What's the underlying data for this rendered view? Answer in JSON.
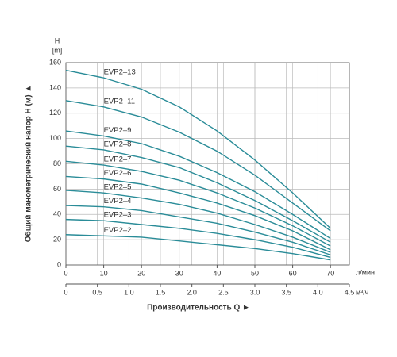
{
  "chart_data": {
    "type": "line",
    "y_label": "H",
    "y_unit": "[m]",
    "y_title": "Общий манометрический напор H (м) ▲",
    "x_title": "Производительность Q ►",
    "x_unit": "л/мин",
    "x2_unit": "м³/ч",
    "x": [
      0,
      10,
      20,
      30,
      40,
      50,
      60,
      70
    ],
    "xlim": [
      0,
      75
    ],
    "xticks": [
      0,
      10,
      20,
      30,
      40,
      50,
      60,
      70
    ],
    "x2lim": [
      0,
      4.5
    ],
    "x2ticks": [
      0,
      0.5,
      {
        "value": 1,
        "label": "1.0"
      },
      1.5,
      {
        "value": 2,
        "label": "2.0"
      },
      2.5,
      {
        "value": 3,
        "label": "3.0"
      },
      3.5,
      {
        "value": 4,
        "label": "4.0"
      },
      4.5
    ],
    "ylim": [
      0,
      160
    ],
    "yticks": [
      0,
      20,
      40,
      60,
      80,
      100,
      120,
      140,
      160
    ],
    "grid": true,
    "series": [
      {
        "name": "EVP2–13",
        "color": "#2a8c98",
        "values": [
          154,
          148,
          139,
          125,
          106,
          83,
          57,
          29
        ]
      },
      {
        "name": "EVP2–11",
        "color": "#2a8c98",
        "values": [
          130,
          125,
          117,
          105,
          90,
          71,
          49,
          27
        ]
      },
      {
        "name": "EVP2–9",
        "color": "#2a8c98",
        "values": [
          106,
          102,
          96,
          86,
          73,
          58,
          40,
          21
        ]
      },
      {
        "name": "EVP2–8",
        "color": "#2a8c98",
        "values": [
          94,
          91,
          85,
          77,
          65,
          51,
          35,
          18
        ]
      },
      {
        "name": "EVP2–7",
        "color": "#2a8c98",
        "values": [
          82,
          79,
          74,
          67,
          57,
          45,
          31,
          15
        ]
      },
      {
        "name": "EVP2–6",
        "color": "#2a8c98",
        "values": [
          70,
          68,
          64,
          57,
          49,
          39,
          27,
          12
        ]
      },
      {
        "name": "EVP2–5",
        "color": "#2a8c98",
        "values": [
          59,
          57,
          53,
          48,
          41,
          32,
          22,
          10
        ]
      },
      {
        "name": "EVP2–4",
        "color": "#2a8c98",
        "values": [
          47,
          46,
          43,
          38,
          33,
          26,
          18,
          8
        ]
      },
      {
        "name": "EVP2–3",
        "color": "#2a8c98",
        "values": [
          36,
          35,
          32,
          29,
          25,
          20,
          14,
          6
        ]
      },
      {
        "name": "EVP2–2",
        "color": "#2a8c98",
        "values": [
          24,
          23,
          22,
          19,
          16,
          13,
          9,
          4
        ]
      }
    ]
  }
}
